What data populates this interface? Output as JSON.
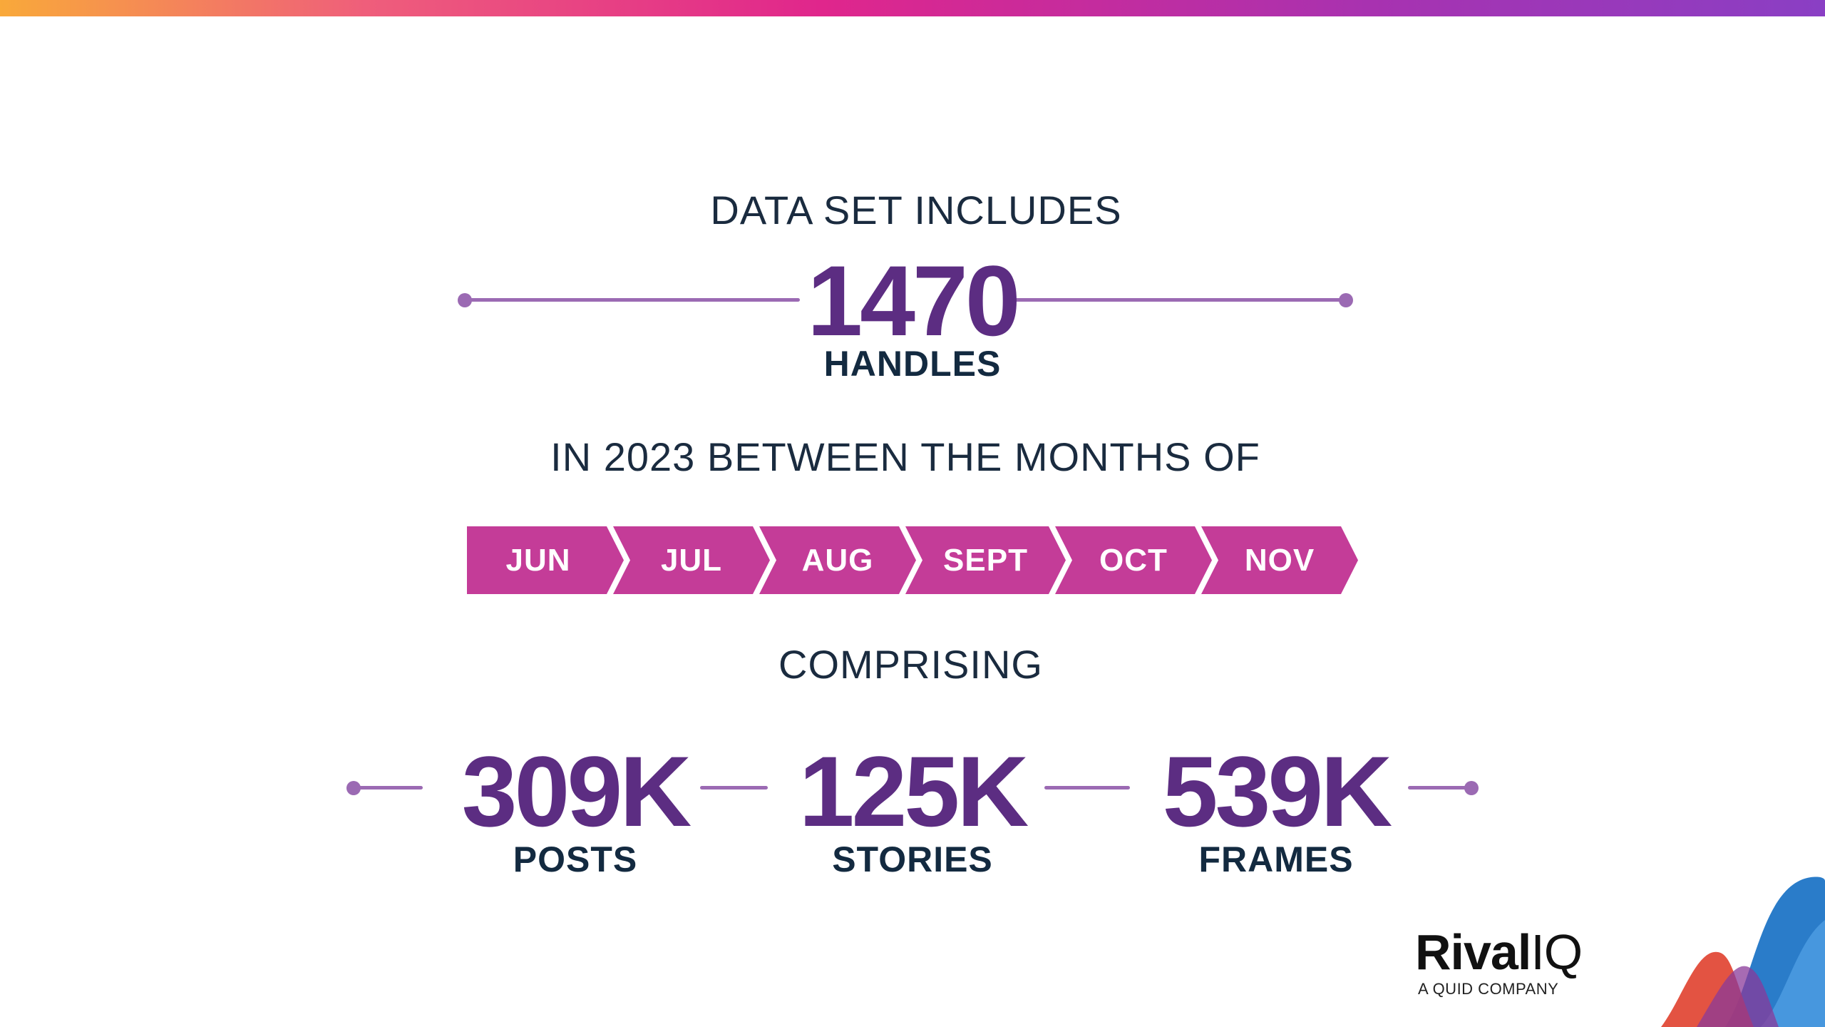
{
  "headings": {
    "intro": "DATA SET INCLUDES",
    "months_intro": "IN 2023 BETWEEN THE MONTHS OF",
    "comprising": "COMPRISING"
  },
  "handles": {
    "value": "1470",
    "label": "HANDLES"
  },
  "months": [
    "JUN",
    "JUL",
    "AUG",
    "SEPT",
    "OCT",
    "NOV"
  ],
  "stats": [
    {
      "value": "309K",
      "label": "POSTS"
    },
    {
      "value": "125K",
      "label": "STORIES"
    },
    {
      "value": "539K",
      "label": "FRAMES"
    }
  ],
  "logo": {
    "name_bold": "Rival",
    "name_light": "IQ",
    "tagline": "A QUID COMPANY"
  },
  "colors": {
    "accent_purple": "#5c2d82",
    "month_magenta": "#c43c98",
    "line_lavender": "#9b6ab3",
    "text_navy": "#132a40"
  }
}
